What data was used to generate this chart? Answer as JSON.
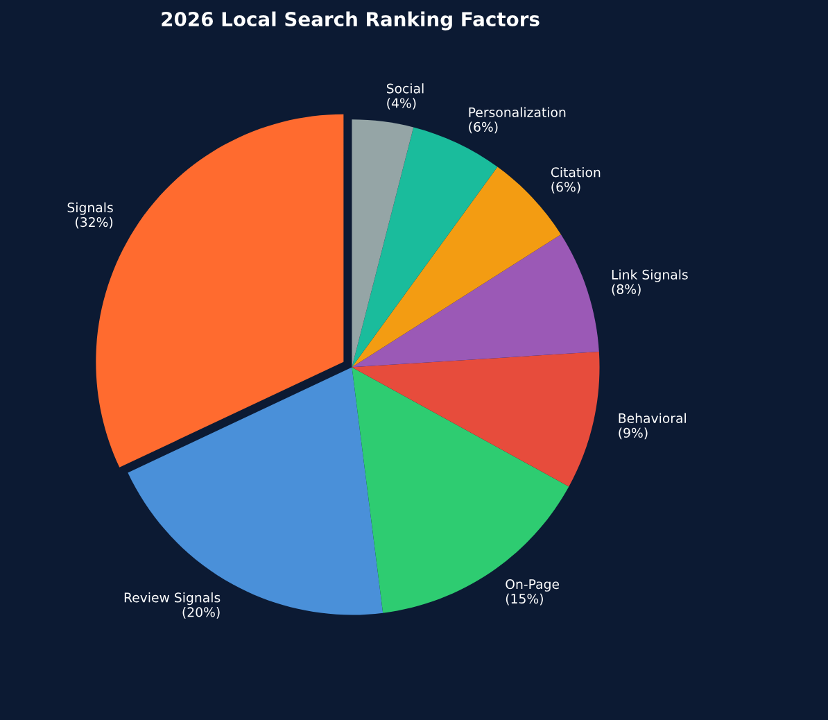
{
  "chart_data": {
    "type": "pie",
    "title": "2026 Local Search Ranking Factors",
    "categories": [
      "Signals",
      "Review Signals",
      "On-Page",
      "Behavioral",
      "Link Signals",
      "Citation",
      "Personalization",
      "Social"
    ],
    "values": [
      32,
      20,
      15,
      9,
      8,
      6,
      6,
      4
    ],
    "value_labels": [
      "(32%)",
      "(20%)",
      "(15%)",
      "(9%)",
      "(8%)",
      "(6%)",
      "(6%)",
      "(4%)"
    ],
    "colors": [
      "#ff6b2f",
      "#4a90d9",
      "#2ecc71",
      "#e74c3c",
      "#9b59b6",
      "#f39c12",
      "#1abc9c",
      "#95a5a6"
    ],
    "legend": false
  }
}
